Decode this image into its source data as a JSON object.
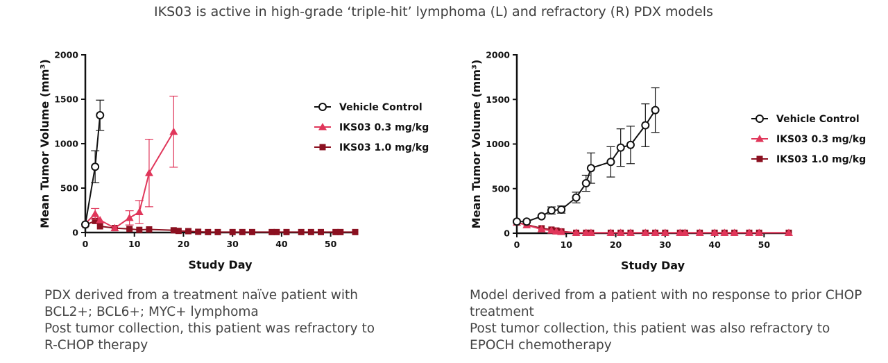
{
  "title": "IKS03 is active in high-grade ‘triple-hit’ lymphoma (L) and refractory (R) PDX models",
  "captions": {
    "left": [
      "PDX derived from a treatment naïve patient with",
      "BCL2+; BCL6+; MYC+ lymphoma",
      "Post tumor collection, this patient was refractory to",
      "R-CHOP therapy"
    ],
    "right": [
      "Model derived from a patient with no response to prior CHOP",
      "treatment",
      "Post tumor collection, this patient was also refractory to",
      "EPOCH chemotherapy"
    ]
  },
  "chart_data": [
    {
      "type": "line",
      "xlabel": "Study Day",
      "ylabel": "Mean Tumor Volume (mm³)",
      "xlim": [
        0,
        55
      ],
      "ylim": [
        0,
        2000
      ],
      "xticks": [
        0,
        10,
        20,
        30,
        40,
        50
      ],
      "yticks": [
        0,
        500,
        1000,
        1500,
        2000
      ],
      "legend_position": "right",
      "series": [
        {
          "name": "Vehicle Control",
          "color": "#111111",
          "marker": "circle-open",
          "x": [
            0,
            2,
            3
          ],
          "y": [
            90,
            740,
            1320
          ],
          "err": [
            0,
            180,
            170
          ]
        },
        {
          "name": "IKS03 0.3 mg/kg",
          "color": "#e0365a",
          "marker": "triangle",
          "x": [
            0,
            2,
            3,
            6,
            9,
            11,
            13,
            18
          ],
          "y": [
            100,
            210,
            140,
            50,
            165,
            230,
            670,
            1135
          ],
          "err": [
            0,
            60,
            0,
            0,
            80,
            130,
            380,
            400
          ]
        },
        {
          "name": "IKS03 1.0 mg/kg",
          "color": "#8b1020",
          "marker": "square",
          "x": [
            0,
            2,
            3,
            6,
            9,
            11,
            13,
            18,
            19,
            21,
            23,
            25,
            27,
            30,
            32,
            34,
            38,
            39,
            41,
            44,
            46,
            48,
            51,
            52,
            55
          ],
          "y": [
            85,
            130,
            70,
            50,
            40,
            30,
            35,
            25,
            18,
            15,
            8,
            5,
            5,
            5,
            5,
            5,
            5,
            5,
            5,
            5,
            5,
            5,
            5,
            5,
            5
          ],
          "err": []
        }
      ]
    },
    {
      "type": "line",
      "xlabel": "Study Day",
      "ylabel": "Mean Tumor Volume (mm³)",
      "xlim": [
        0,
        55
      ],
      "ylim": [
        0,
        2000
      ],
      "xticks": [
        0,
        10,
        20,
        30,
        40,
        50
      ],
      "yticks": [
        0,
        500,
        1000,
        1500,
        2000
      ],
      "legend_position": "right",
      "series": [
        {
          "name": "Vehicle Control",
          "color": "#111111",
          "marker": "circle-open",
          "x": [
            0,
            2,
            5,
            7,
            9,
            12,
            14,
            15,
            19,
            21,
            23,
            26,
            28
          ],
          "y": [
            130,
            130,
            190,
            255,
            265,
            400,
            560,
            730,
            800,
            960,
            990,
            1210,
            1380
          ],
          "err": [
            0,
            0,
            0,
            40,
            40,
            60,
            90,
            170,
            170,
            210,
            210,
            240,
            250
          ]
        },
        {
          "name": "IKS03 0.3 mg/kg",
          "color": "#e0365a",
          "marker": "triangle",
          "x": [
            0,
            2,
            5,
            7,
            8,
            9,
            12,
            14,
            15,
            19,
            21,
            23,
            26,
            28,
            30,
            33,
            34,
            37,
            40,
            42,
            44,
            47,
            49,
            55
          ],
          "y": [
            120,
            90,
            45,
            30,
            20,
            15,
            5,
            5,
            5,
            5,
            5,
            5,
            5,
            5,
            5,
            5,
            5,
            5,
            5,
            5,
            5,
            5,
            5,
            5
          ],
          "err": []
        },
        {
          "name": "IKS03 1.0 mg/kg",
          "color": "#8b1020",
          "marker": "square",
          "x": [
            0,
            2,
            5,
            7,
            8,
            9,
            12,
            14,
            15,
            19,
            21,
            23,
            26,
            28,
            30,
            33,
            34,
            37,
            40,
            42,
            44,
            47,
            49,
            55
          ],
          "y": [
            120,
            95,
            55,
            40,
            30,
            20,
            5,
            5,
            5,
            5,
            5,
            5,
            5,
            5,
            5,
            5,
            5,
            5,
            5,
            5,
            5,
            5,
            5,
            5
          ],
          "err": []
        }
      ]
    }
  ]
}
